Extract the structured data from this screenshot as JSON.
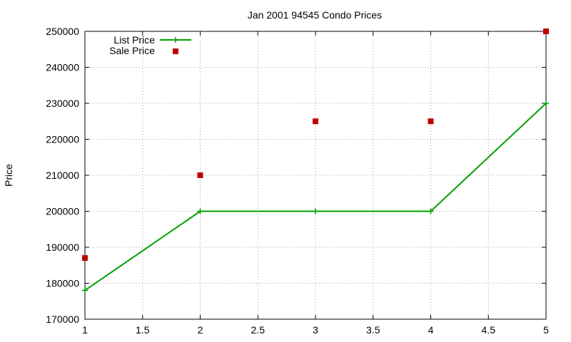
{
  "chart_data": {
    "type": "line",
    "title": "Jan 2001 94545 Condo Prices",
    "xlabel": "",
    "ylabel": "Price",
    "xlim": [
      1,
      5
    ],
    "ylim": [
      170000,
      250000
    ],
    "x_ticks": [
      "1",
      "1.5",
      "2",
      "2.5",
      "3",
      "3.5",
      "4",
      "4.5",
      "5"
    ],
    "y_ticks": [
      "170000",
      "180000",
      "190000",
      "200000",
      "210000",
      "220000",
      "230000",
      "240000",
      "250000"
    ],
    "grid": true,
    "legend_position": "top-left",
    "series": [
      {
        "name": "List Price",
        "style": "line-with-plus-markers",
        "color": "#00a000",
        "x": [
          1,
          2,
          3,
          4,
          5
        ],
        "y": [
          178000,
          200000,
          200000,
          200000,
          230000
        ]
      },
      {
        "name": "Sale Price",
        "style": "square-markers",
        "color": "#c00000",
        "x": [
          1,
          2,
          3,
          4,
          5
        ],
        "y": [
          187000,
          210000,
          225000,
          225000,
          250000
        ]
      }
    ]
  }
}
